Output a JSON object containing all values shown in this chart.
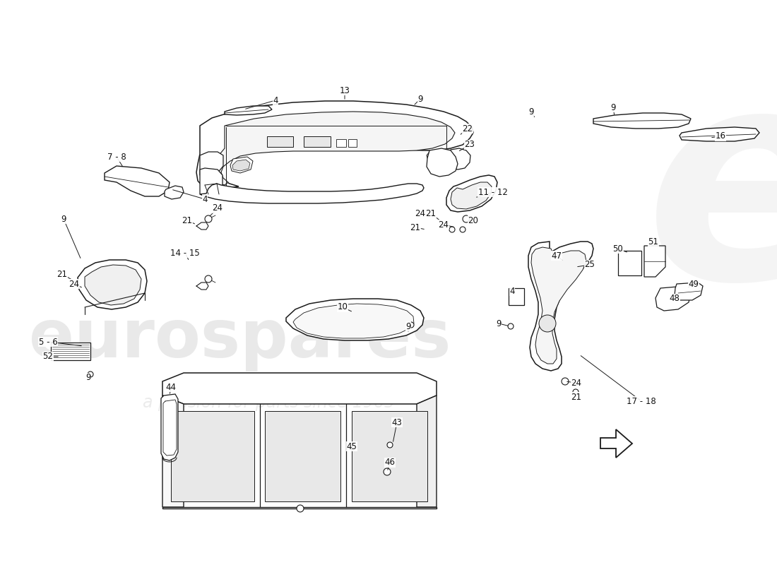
{
  "background_color": "#ffffff",
  "line_color": "#1a1a1a",
  "watermark1": "eurospares",
  "watermark2": "a passion for parts since 1965",
  "figsize": [
    11.0,
    8.0
  ],
  "dpi": 100,
  "labels": [
    [
      "4",
      390,
      148
    ],
    [
      "13",
      490,
      132
    ],
    [
      "9",
      595,
      145
    ],
    [
      "22",
      660,
      188
    ],
    [
      "23",
      662,
      210
    ],
    [
      "7 - 8",
      168,
      228
    ],
    [
      "9",
      95,
      318
    ],
    [
      "4",
      295,
      288
    ],
    [
      "24",
      310,
      303
    ],
    [
      "21",
      270,
      318
    ],
    [
      "14 - 15",
      268,
      363
    ],
    [
      "21",
      92,
      395
    ],
    [
      "24",
      108,
      408
    ],
    [
      "5 - 6",
      75,
      490
    ],
    [
      "52",
      75,
      510
    ],
    [
      "9",
      128,
      540
    ],
    [
      "10",
      488,
      440
    ],
    [
      "9",
      580,
      468
    ],
    [
      "11 - 12",
      700,
      278
    ],
    [
      "20",
      672,
      318
    ],
    [
      "21",
      614,
      308
    ],
    [
      "24",
      630,
      325
    ],
    [
      "21",
      592,
      328
    ],
    [
      "24",
      597,
      308
    ],
    [
      "47",
      790,
      368
    ],
    [
      "25",
      838,
      380
    ],
    [
      "4",
      728,
      418
    ],
    [
      "9",
      710,
      465
    ],
    [
      "16",
      1018,
      198
    ],
    [
      "9",
      870,
      158
    ],
    [
      "9",
      755,
      163
    ],
    [
      "17 - 18",
      910,
      572
    ],
    [
      "44",
      245,
      552
    ],
    [
      "43",
      565,
      602
    ],
    [
      "45",
      502,
      638
    ],
    [
      "46",
      555,
      658
    ],
    [
      "50",
      878,
      358
    ],
    [
      "51",
      928,
      348
    ],
    [
      "49",
      985,
      408
    ],
    [
      "48",
      958,
      428
    ],
    [
      "24",
      820,
      548
    ],
    [
      "21",
      820,
      568
    ]
  ]
}
